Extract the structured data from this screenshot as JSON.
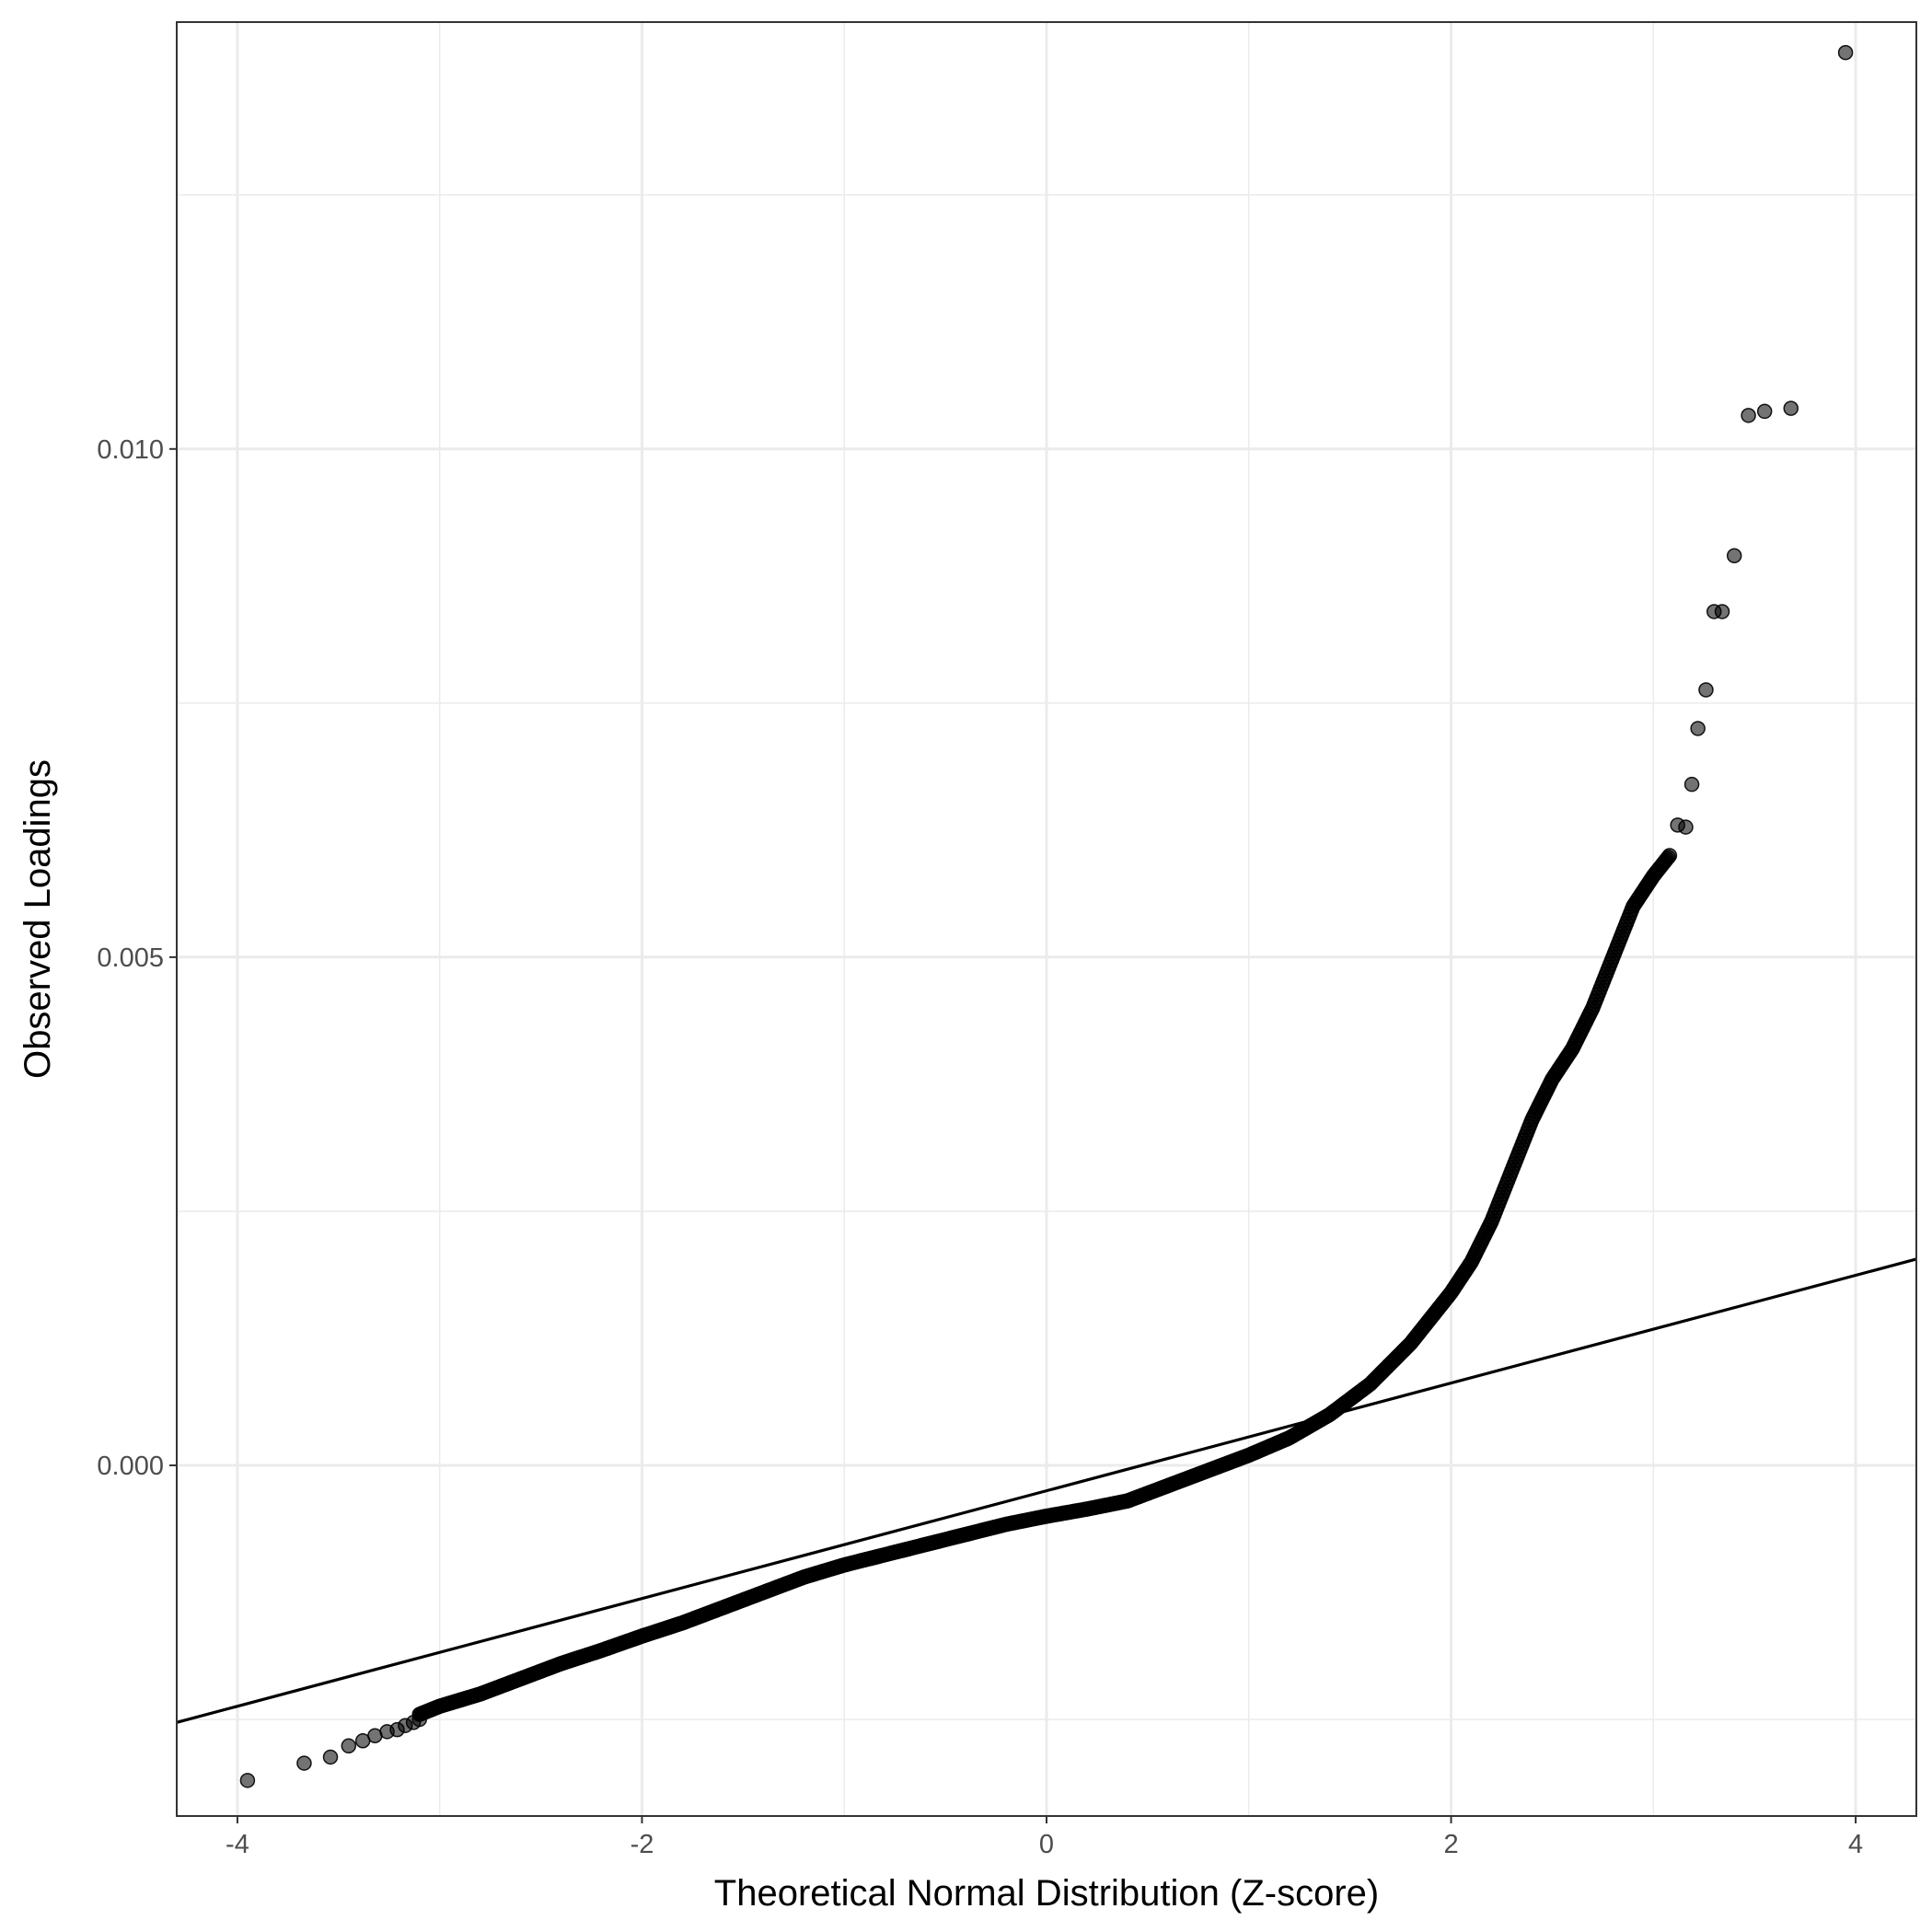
{
  "chart_data": {
    "type": "scatter",
    "xlabel": "Theoretical Normal Distribution (Z-score)",
    "ylabel": "Observed Loadings",
    "xlim": [
      -4.3,
      4.3
    ],
    "ylim": [
      -0.00345,
      0.0142
    ],
    "x_ticks": [
      -4,
      -2,
      0,
      2,
      4
    ],
    "x_tick_labels": [
      "-4",
      "-2",
      "0",
      "2",
      "4"
    ],
    "y_ticks": [
      0.0,
      0.005,
      0.01
    ],
    "y_tick_labels": [
      "0.000",
      "0.005",
      "0.010"
    ],
    "grid": true,
    "reference_line": {
      "intercept": -0.00025,
      "slope": 0.00053
    },
    "curve_points": [
      [
        -3.1,
        -0.00245
      ],
      [
        -3.0,
        -0.00237
      ],
      [
        -2.8,
        -0.00225
      ],
      [
        -2.6,
        -0.0021
      ],
      [
        -2.4,
        -0.00195
      ],
      [
        -2.2,
        -0.00182
      ],
      [
        -2.0,
        -0.00168
      ],
      [
        -1.8,
        -0.00155
      ],
      [
        -1.6,
        -0.0014
      ],
      [
        -1.4,
        -0.00125
      ],
      [
        -1.2,
        -0.0011
      ],
      [
        -1.0,
        -0.00098
      ],
      [
        -0.8,
        -0.00088
      ],
      [
        -0.6,
        -0.00078
      ],
      [
        -0.4,
        -0.00068
      ],
      [
        -0.2,
        -0.00058
      ],
      [
        0.0,
        -0.0005
      ],
      [
        0.2,
        -0.00043
      ],
      [
        0.4,
        -0.00035
      ],
      [
        0.6,
        -0.0002
      ],
      [
        0.8,
        -5e-05
      ],
      [
        1.0,
        0.0001
      ],
      [
        1.2,
        0.00027
      ],
      [
        1.4,
        0.0005
      ],
      [
        1.6,
        0.0008
      ],
      [
        1.8,
        0.0012
      ],
      [
        1.9,
        0.00145
      ],
      [
        2.0,
        0.0017
      ],
      [
        2.1,
        0.002
      ],
      [
        2.2,
        0.0024
      ],
      [
        2.3,
        0.0029
      ],
      [
        2.4,
        0.0034
      ],
      [
        2.5,
        0.0038
      ],
      [
        2.6,
        0.0041
      ],
      [
        2.7,
        0.0045
      ],
      [
        2.8,
        0.005
      ],
      [
        2.9,
        0.0055
      ],
      [
        3.0,
        0.0058
      ],
      [
        3.08,
        0.006
      ]
    ],
    "points": [
      [
        -3.95,
        -0.0031
      ],
      [
        -3.67,
        -0.00293
      ],
      [
        -3.54,
        -0.00287
      ],
      [
        -3.45,
        -0.00276
      ],
      [
        -3.38,
        -0.00271
      ],
      [
        -3.32,
        -0.00266
      ],
      [
        -3.26,
        -0.00262
      ],
      [
        -3.21,
        -0.0026
      ],
      [
        -3.17,
        -0.00256
      ],
      [
        -3.13,
        -0.00253
      ],
      [
        -3.1,
        -0.0025
      ],
      [
        3.12,
        0.0063
      ],
      [
        3.16,
        0.00628
      ],
      [
        3.19,
        0.0067
      ],
      [
        3.22,
        0.00725
      ],
      [
        3.26,
        0.00763
      ],
      [
        3.3,
        0.0084
      ],
      [
        3.34,
        0.0084
      ],
      [
        3.4,
        0.00895
      ],
      [
        3.47,
        0.01033
      ],
      [
        3.55,
        0.01037
      ],
      [
        3.68,
        0.0104
      ],
      [
        3.95,
        0.0139
      ]
    ]
  }
}
